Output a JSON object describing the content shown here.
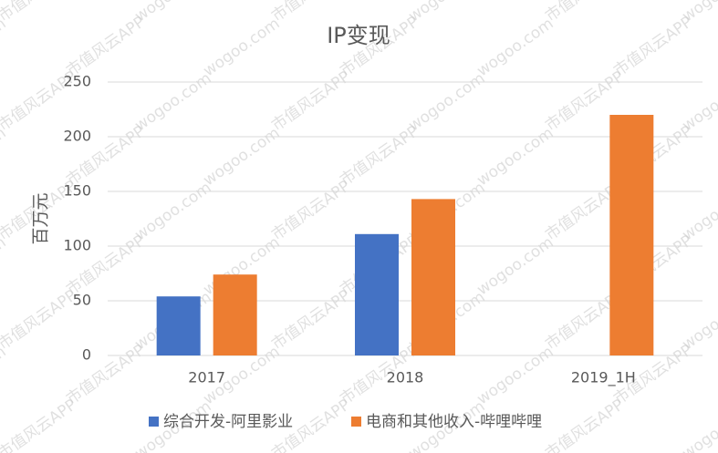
{
  "chart_data": {
    "type": "bar",
    "title": "IP变现",
    "y_label": "百万元",
    "categories": [
      "2017",
      "2018",
      "2019_1H"
    ],
    "series": [
      {
        "name": "综合开发-阿里影业",
        "color": "#4472c4",
        "values": [
          54,
          111,
          null
        ]
      },
      {
        "name": "电商和其他收入-哔哩哔哩",
        "color": "#ed7d31",
        "values": [
          74,
          143,
          220
        ]
      }
    ],
    "ylim": [
      0,
      250
    ],
    "yticks": [
      0,
      50,
      100,
      150,
      200,
      250
    ],
    "grid": true,
    "legend": "bottom",
    "watermark": [
      "wogoo.com",
      "市值风云APP"
    ]
  }
}
